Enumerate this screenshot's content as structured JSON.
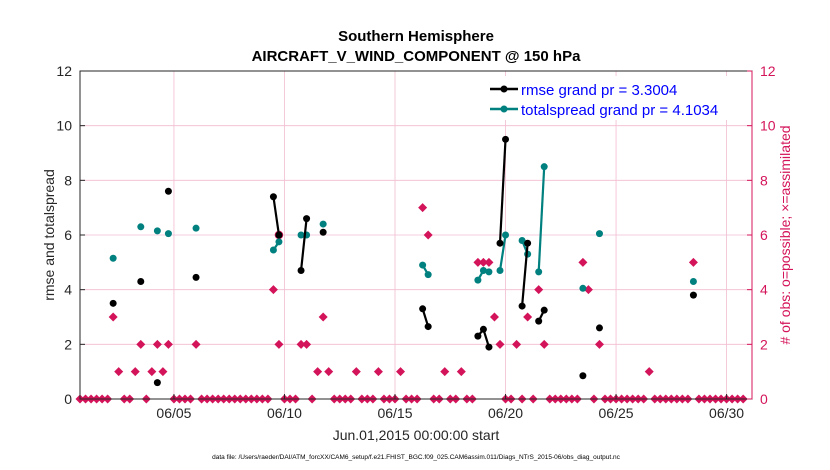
{
  "chart_data": {
    "type": "line",
    "title": "Southern Hemisphere",
    "subtitle": "AIRCRAFT_V_WIND_COMPONENT @ 150 hPa",
    "xlabel": "Jun.01,2015 00:00:00 start",
    "ylabel": "rmse and totalspread",
    "y2label": "# of obs: o=possible; ×=assimilated",
    "footnote": "data file: /Users/raeder/DAI/ATM_forcXX/CAM6_setup/f.e21.FHIST_BGC.f09_025.CAM6assim.011/Diags_NTrS_2015-06/obs_diag_output.nc",
    "xlim": [
      1,
      31.4
    ],
    "ylim": [
      0,
      12
    ],
    "y2lim": [
      0,
      12
    ],
    "xtick_values": [
      5.25,
      10.25,
      15.25,
      20.25,
      25.25,
      30.25
    ],
    "xtick_labels": [
      "06/05",
      "06/10",
      "06/15",
      "06/20",
      "06/25",
      "06/30"
    ],
    "ytick_values": [
      0,
      2,
      4,
      6,
      8,
      10,
      12
    ],
    "ytick_labels": [
      "0",
      "2",
      "4",
      "6",
      "8",
      "10",
      "12"
    ],
    "y2tick_labels": [
      "0",
      "2",
      "4",
      "6",
      "8",
      "10",
      "12"
    ],
    "legend": {
      "placement": "top-right",
      "entries": [
        {
          "label": "rmse grand pr = 3.3004",
          "series": "rmse"
        },
        {
          "label": "totalspread grand pr = 4.1034",
          "series": "totalspread"
        }
      ]
    },
    "colors": {
      "rmse": "#000000",
      "totalspread": "#00807f",
      "obs": "#d4145a",
      "legend_text": "#0000ff",
      "grid": "#f2bcd0",
      "right_axis": "#d4145a"
    },
    "series": [
      {
        "name": "rmse",
        "points": [
          [
            2.5,
            3.5
          ],
          [
            3.75,
            4.3
          ],
          [
            4.5,
            0.6
          ],
          [
            5.0,
            7.6
          ],
          [
            6.25,
            4.45
          ],
          [
            9.75,
            7.4
          ],
          [
            10.0,
            6.0
          ],
          [
            11.0,
            4.7
          ],
          [
            11.25,
            6.6
          ],
          [
            12.0,
            6.1
          ],
          [
            16.5,
            3.3
          ],
          [
            16.75,
            2.65
          ],
          [
            19.0,
            2.3
          ],
          [
            19.25,
            2.55
          ],
          [
            19.5,
            1.9
          ],
          [
            20.0,
            5.7
          ],
          [
            20.25,
            9.5
          ],
          [
            21.0,
            3.4
          ],
          [
            21.25,
            5.7
          ],
          [
            21.75,
            2.85
          ],
          [
            22.0,
            3.25
          ],
          [
            23.75,
            0.85
          ],
          [
            24.5,
            2.6
          ],
          [
            28.75,
            3.8
          ]
        ],
        "segments": [
          [
            9.75,
            10.0
          ],
          [
            11.0,
            11.25
          ],
          [
            16.5,
            16.75
          ],
          [
            19.0,
            19.25
          ],
          [
            19.25,
            19.5
          ],
          [
            20.0,
            20.25
          ],
          [
            21.0,
            21.25
          ],
          [
            21.75,
            22.0
          ]
        ]
      },
      {
        "name": "totalspread",
        "points": [
          [
            2.5,
            5.15
          ],
          [
            3.75,
            6.3
          ],
          [
            4.5,
            6.15
          ],
          [
            5.0,
            6.05
          ],
          [
            6.25,
            6.25
          ],
          [
            9.75,
            5.45
          ],
          [
            10.0,
            5.75
          ],
          [
            11.0,
            6.0
          ],
          [
            11.25,
            6.0
          ],
          [
            12.0,
            6.4
          ],
          [
            16.5,
            4.9
          ],
          [
            16.75,
            4.55
          ],
          [
            19.0,
            4.35
          ],
          [
            19.25,
            4.7
          ],
          [
            19.5,
            4.65
          ],
          [
            20.0,
            4.7
          ],
          [
            20.25,
            6.0
          ],
          [
            21.0,
            5.8
          ],
          [
            21.25,
            5.3
          ],
          [
            21.75,
            4.65
          ],
          [
            22.0,
            8.5
          ],
          [
            23.75,
            4.05
          ],
          [
            24.5,
            6.05
          ],
          [
            28.75,
            4.3
          ]
        ],
        "segments": [
          [
            9.75,
            10.0
          ],
          [
            11.0,
            11.25
          ],
          [
            16.5,
            16.75
          ],
          [
            19.0,
            19.25
          ],
          [
            19.25,
            19.5
          ],
          [
            20.0,
            20.25
          ],
          [
            21.0,
            21.25
          ],
          [
            21.75,
            22.0
          ]
        ]
      },
      {
        "name": "obs_assimilated",
        "points": [
          [
            1.0,
            0
          ],
          [
            1.25,
            0
          ],
          [
            1.5,
            0
          ],
          [
            1.75,
            0
          ],
          [
            2.0,
            0
          ],
          [
            2.25,
            0
          ],
          [
            2.5,
            3
          ],
          [
            2.75,
            1
          ],
          [
            3.0,
            0
          ],
          [
            3.25,
            0
          ],
          [
            3.5,
            1
          ],
          [
            3.75,
            2
          ],
          [
            4.0,
            0
          ],
          [
            4.25,
            1
          ],
          [
            4.5,
            2
          ],
          [
            4.75,
            1
          ],
          [
            5.0,
            2
          ],
          [
            5.25,
            0
          ],
          [
            5.5,
            0
          ],
          [
            5.75,
            0
          ],
          [
            6.0,
            0
          ],
          [
            6.25,
            2
          ],
          [
            6.5,
            0
          ],
          [
            6.75,
            0
          ],
          [
            7.0,
            0
          ],
          [
            7.25,
            0
          ],
          [
            7.5,
            0
          ],
          [
            7.75,
            0
          ],
          [
            8.0,
            0
          ],
          [
            8.25,
            0
          ],
          [
            8.5,
            0
          ],
          [
            8.75,
            0
          ],
          [
            9.0,
            0
          ],
          [
            9.25,
            0
          ],
          [
            9.5,
            0
          ],
          [
            9.75,
            4
          ],
          [
            10.0,
            2
          ],
          [
            10.25,
            0
          ],
          [
            10.5,
            0
          ],
          [
            10.75,
            0
          ],
          [
            11.0,
            2
          ],
          [
            11.25,
            2
          ],
          [
            11.5,
            0
          ],
          [
            11.75,
            1
          ],
          [
            12.0,
            3
          ],
          [
            12.25,
            1
          ],
          [
            12.5,
            0
          ],
          [
            12.75,
            0
          ],
          [
            13.0,
            0
          ],
          [
            13.25,
            0
          ],
          [
            13.5,
            1
          ],
          [
            13.75,
            0
          ],
          [
            14.0,
            0
          ],
          [
            14.25,
            0
          ],
          [
            14.5,
            1
          ],
          [
            14.75,
            0
          ],
          [
            15.0,
            0
          ],
          [
            15.25,
            0
          ],
          [
            15.5,
            1
          ],
          [
            15.75,
            0
          ],
          [
            16.0,
            0
          ],
          [
            16.25,
            0
          ],
          [
            16.5,
            7
          ],
          [
            16.75,
            6
          ],
          [
            17.0,
            0
          ],
          [
            17.25,
            0
          ],
          [
            17.5,
            1
          ],
          [
            17.75,
            0
          ],
          [
            18.0,
            0
          ],
          [
            18.25,
            1
          ],
          [
            18.5,
            0
          ],
          [
            18.75,
            0
          ],
          [
            19.0,
            5
          ],
          [
            19.25,
            5
          ],
          [
            19.5,
            5
          ],
          [
            19.75,
            3
          ],
          [
            20.0,
            2
          ],
          [
            20.25,
            0
          ],
          [
            20.5,
            0
          ],
          [
            20.75,
            2
          ],
          [
            21.0,
            0
          ],
          [
            21.25,
            3
          ],
          [
            21.5,
            0
          ],
          [
            21.75,
            4
          ],
          [
            22.0,
            2
          ],
          [
            22.25,
            0
          ],
          [
            22.5,
            0
          ],
          [
            22.75,
            0
          ],
          [
            23.0,
            0
          ],
          [
            23.25,
            0
          ],
          [
            23.5,
            0
          ],
          [
            23.75,
            5
          ],
          [
            24.0,
            4
          ],
          [
            24.25,
            0
          ],
          [
            24.5,
            2
          ],
          [
            24.75,
            0
          ],
          [
            25.0,
            0
          ],
          [
            25.25,
            0
          ],
          [
            25.5,
            0
          ],
          [
            25.75,
            0
          ],
          [
            26.0,
            0
          ],
          [
            26.25,
            0
          ],
          [
            26.5,
            0
          ],
          [
            26.75,
            1
          ],
          [
            27.0,
            0
          ],
          [
            27.25,
            0
          ],
          [
            27.5,
            0
          ],
          [
            27.75,
            0
          ],
          [
            28.0,
            0
          ],
          [
            28.25,
            0
          ],
          [
            28.5,
            0
          ],
          [
            28.75,
            5
          ],
          [
            29.0,
            0
          ],
          [
            29.25,
            0
          ],
          [
            29.5,
            0
          ],
          [
            29.75,
            0
          ],
          [
            30.0,
            0
          ],
          [
            30.25,
            0
          ],
          [
            30.5,
            0
          ],
          [
            30.75,
            0
          ],
          [
            31.0,
            0
          ]
        ]
      },
      {
        "name": "obs_possible",
        "points": [
          [
            10.0,
            6
          ]
        ]
      }
    ]
  }
}
